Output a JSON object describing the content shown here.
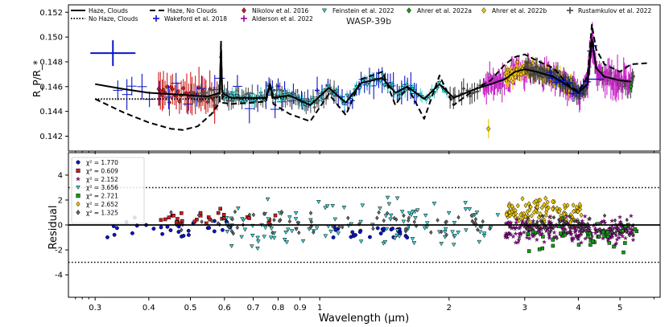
{
  "chart_data": [
    {
      "type": "line",
      "title": "WASP-39b",
      "ylabel": "R_P/R_*",
      "xscale": "log",
      "xlim": [
        0.26,
        6.2
      ],
      "ylim": [
        0.1408,
        0.1526
      ],
      "yticks": [
        0.142,
        0.144,
        0.146,
        0.148,
        0.15,
        0.152
      ],
      "legend": [
        {
          "label": "Haze, Clouds",
          "kind": "line",
          "style": "solid",
          "color": "#000000"
        },
        {
          "label": "No Haze, Clouds",
          "kind": "line",
          "style": "dotted",
          "color": "#000000"
        },
        {
          "label": "Haze, No Clouds",
          "kind": "line",
          "style": "dashed",
          "color": "#000000"
        },
        {
          "label": "Wakeford et al. 2018",
          "kind": "errpoint",
          "color": "#0a14c8"
        },
        {
          "label": "Nikolov et al. 2016",
          "kind": "diamond",
          "color": "#d01a1a"
        },
        {
          "label": "Alderson et al. 2022",
          "kind": "errpoint",
          "color": "#a000a0"
        },
        {
          "label": "Feinstein et al. 2022",
          "kind": "tri",
          "color": "#39d6d6"
        },
        {
          "label": "Ahrer et al. 2022a",
          "kind": "diamond",
          "color": "#10a010"
        },
        {
          "label": "Ahrer et al. 2022b",
          "kind": "diamond",
          "color": "#f0c800"
        },
        {
          "label": "Rustamkulov et al. 2022",
          "kind": "errpoint",
          "color": "#444444"
        }
      ],
      "series": [
        {
          "name": "Haze, Clouds",
          "color": "#000000",
          "style": "solid",
          "x": [
            0.3,
            0.35,
            0.4,
            0.45,
            0.5,
            0.55,
            0.585,
            0.589,
            0.593,
            0.62,
            0.7,
            0.75,
            0.766,
            0.78,
            0.85,
            0.95,
            1.05,
            1.15,
            1.25,
            1.4,
            1.5,
            1.6,
            1.75,
            1.9,
            2.05,
            2.3,
            2.5,
            2.7,
            2.85,
            3.0,
            3.2,
            3.5,
            3.8,
            4.0,
            4.2,
            4.3,
            4.4,
            4.6,
            5.0,
            5.3
          ],
          "y": [
            0.1462,
            0.1458,
            0.1455,
            0.1454,
            0.1453,
            0.1452,
            0.1455,
            0.1492,
            0.1455,
            0.1451,
            0.1451,
            0.1451,
            0.1462,
            0.1451,
            0.1453,
            0.1445,
            0.1459,
            0.1447,
            0.1463,
            0.1467,
            0.1455,
            0.146,
            0.145,
            0.1462,
            0.1451,
            0.1458,
            0.1462,
            0.1466,
            0.1472,
            0.1474,
            0.1472,
            0.1468,
            0.146,
            0.1455,
            0.1462,
            0.1498,
            0.1475,
            0.1468,
            0.1465,
            0.1464
          ]
        },
        {
          "name": "No Haze, Clouds",
          "color": "#000000",
          "style": "dotted",
          "x": [
            0.3,
            0.35,
            0.4,
            0.45,
            0.5,
            0.55,
            0.585,
            0.589,
            0.593,
            0.62,
            0.7,
            0.75,
            0.766,
            0.78,
            0.85
          ],
          "y": [
            0.145,
            0.145,
            0.145,
            0.145,
            0.145,
            0.145,
            0.1452,
            0.149,
            0.1452,
            0.145,
            0.145,
            0.145,
            0.146,
            0.145,
            0.1452
          ]
        },
        {
          "name": "Haze, No Clouds",
          "color": "#000000",
          "style": "dashed",
          "x": [
            0.3,
            0.35,
            0.4,
            0.45,
            0.48,
            0.52,
            0.56,
            0.585,
            0.589,
            0.593,
            0.62,
            0.7,
            0.75,
            0.766,
            0.78,
            0.85,
            0.95,
            1.05,
            1.15,
            1.25,
            1.4,
            1.5,
            1.6,
            1.75,
            1.9,
            2.05,
            2.3,
            2.5,
            2.7,
            2.85,
            3.0,
            3.2,
            3.5,
            3.8,
            4.0,
            4.2,
            4.3,
            4.4,
            4.6,
            5.0,
            5.3,
            5.8
          ],
          "y": [
            0.145,
            0.1439,
            0.1431,
            0.1426,
            0.1425,
            0.1428,
            0.1438,
            0.1447,
            0.1497,
            0.1447,
            0.1446,
            0.1447,
            0.1448,
            0.1462,
            0.1446,
            0.1438,
            0.1432,
            0.1454,
            0.1437,
            0.1466,
            0.1472,
            0.1445,
            0.146,
            0.1434,
            0.1469,
            0.1445,
            0.1458,
            0.1465,
            0.1478,
            0.1484,
            0.1486,
            0.1481,
            0.1475,
            0.1461,
            0.1456,
            0.1468,
            0.151,
            0.149,
            0.1478,
            0.1472,
            0.1478,
            0.1479
          ]
        }
      ]
    },
    {
      "type": "scatter",
      "ylabel": "Residual",
      "xlabel": "Wavelength (μm)",
      "xscale": "log",
      "xlim": [
        0.26,
        6.2
      ],
      "ylim": [
        -5.8,
        5.8
      ],
      "yticks": [
        -4,
        -2,
        0,
        2,
        4
      ],
      "xticks": [
        0.3,
        0.4,
        0.5,
        0.6,
        0.7,
        0.8,
        0.9,
        1,
        2,
        3,
        4,
        5
      ],
      "threshold_lines": [
        3,
        -3
      ],
      "legend": [
        {
          "label": "χ² =  1.770",
          "marker": "circle",
          "color": "#0a14c8"
        },
        {
          "label": "χ² =  0.609",
          "marker": "square",
          "color": "#d01a1a"
        },
        {
          "label": "χ² =  2.152",
          "marker": "star",
          "color": "#a000a0"
        },
        {
          "label": "χ² =  3.656",
          "marker": "tri",
          "color": "#39d6d6"
        },
        {
          "label": "χ² =  2.721",
          "marker": "square",
          "color": "#10a010"
        },
        {
          "label": "χ² =  2.652",
          "marker": "diamond",
          "color": "#f0c800"
        },
        {
          "label": "χ² =  1.325",
          "marker": "diamond",
          "color": "#666666"
        }
      ]
    }
  ]
}
